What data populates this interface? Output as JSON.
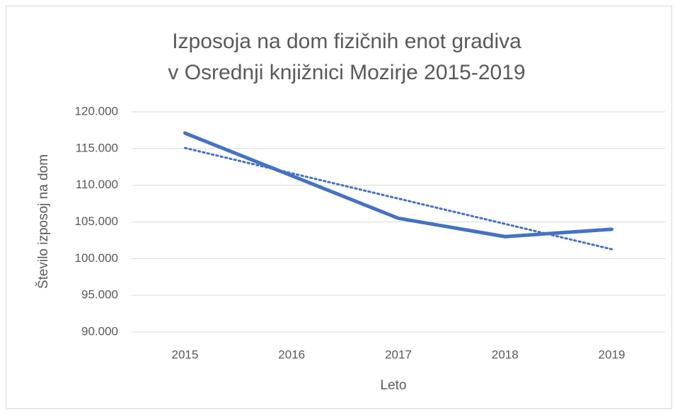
{
  "chart_data": {
    "type": "line",
    "title": [
      "Izposoja na dom fizičnih enot gradiva",
      "v Osrednji knjižnici Mozirje 2015-2019"
    ],
    "x_label": "Leto",
    "y_label": "Število izposoj na dom",
    "categories": [
      "2015",
      "2016",
      "2017",
      "2018",
      "2019"
    ],
    "values": [
      117100,
      111300,
      105500,
      103000,
      104000
    ],
    "color": "#4472c4",
    "trendline": "linear",
    "ylim": [
      90000,
      120000
    ],
    "yticks": [
      {
        "value": 90000,
        "label": "90.000"
      },
      {
        "value": 95000,
        "label": "95.000"
      },
      {
        "value": 100000,
        "label": "100.000"
      },
      {
        "value": 105000,
        "label": "105.000"
      },
      {
        "value": 110000,
        "label": "110.000"
      },
      {
        "value": 115000,
        "label": "115.000"
      },
      {
        "value": 120000,
        "label": "120.000"
      }
    ],
    "grid": true
  }
}
